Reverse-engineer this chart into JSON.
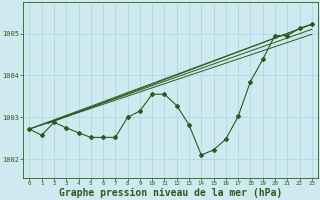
{
  "background_color": "#cfe9f0",
  "plot_bg_color": "#cfe9f0",
  "grid_color": "#b0d8e0",
  "line_color": "#2d5a1b",
  "xlabel": "Graphe pression niveau de la mer (hPa)",
  "xlabel_fontsize": 7,
  "ytick_labels": [
    "1002",
    "1003",
    "1004",
    "1005"
  ],
  "yticks": [
    1002,
    1003,
    1004,
    1005
  ],
  "ylim": [
    1001.55,
    1005.75
  ],
  "xlim": [
    -0.5,
    23.5
  ],
  "xticks": [
    0,
    1,
    2,
    3,
    4,
    5,
    6,
    7,
    8,
    9,
    10,
    11,
    12,
    13,
    14,
    15,
    16,
    17,
    18,
    19,
    20,
    21,
    22,
    23
  ],
  "data_points": [
    1002.72,
    1002.57,
    1002.88,
    1002.75,
    1002.63,
    1002.52,
    1002.52,
    1002.52,
    1003.0,
    1003.15,
    1003.55,
    1003.55,
    1003.28,
    1002.82,
    1002.1,
    1002.22,
    1002.48,
    1003.02,
    1003.85,
    1004.38,
    1004.95,
    1004.95,
    1005.12,
    1005.22
  ],
  "trend_lines": [
    {
      "x0": 0,
      "y0": 1002.72,
      "x1": 23,
      "y1": 1005.22
    },
    {
      "x0": 0,
      "y0": 1002.72,
      "x1": 23,
      "y1": 1005.1
    },
    {
      "x0": 0,
      "y0": 1002.72,
      "x1": 23,
      "y1": 1004.98
    },
    {
      "x0": 1.5,
      "y0": 1002.85,
      "x1": 23,
      "y1": 1005.22
    }
  ],
  "figsize": [
    3.2,
    2.0
  ],
  "dpi": 100
}
